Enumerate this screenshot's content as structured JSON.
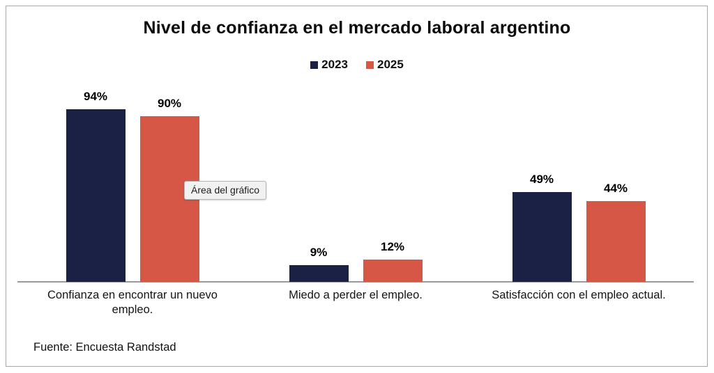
{
  "chart_data": {
    "type": "bar",
    "title": "Nivel de confianza en el mercado laboral argentino",
    "categories": [
      "Confianza en encontrar un nuevo empleo.",
      "Miedo a perder el empleo.",
      "Satisfacción con el empleo actual."
    ],
    "series": [
      {
        "name": "2023",
        "color": "#1b2145",
        "values": [
          94,
          9,
          49
        ]
      },
      {
        "name": "2025",
        "color": "#d65745",
        "values": [
          90,
          12,
          44
        ]
      }
    ],
    "value_label_suffix": "%",
    "ylim": [
      0,
      100
    ],
    "grid": false,
    "legend_position": "top",
    "xlabel": "",
    "ylabel": ""
  },
  "tooltip": {
    "text": "Área del gráfico"
  },
  "footer": {
    "source": "Fuente: Encuesta Randstad"
  },
  "colors": {
    "series_2023": "#1b2145",
    "series_2025": "#d65745",
    "axis_line": "#9a9a9a",
    "frame_border": "#a8a8a8",
    "tooltip_bg": "#f1f1f1"
  }
}
